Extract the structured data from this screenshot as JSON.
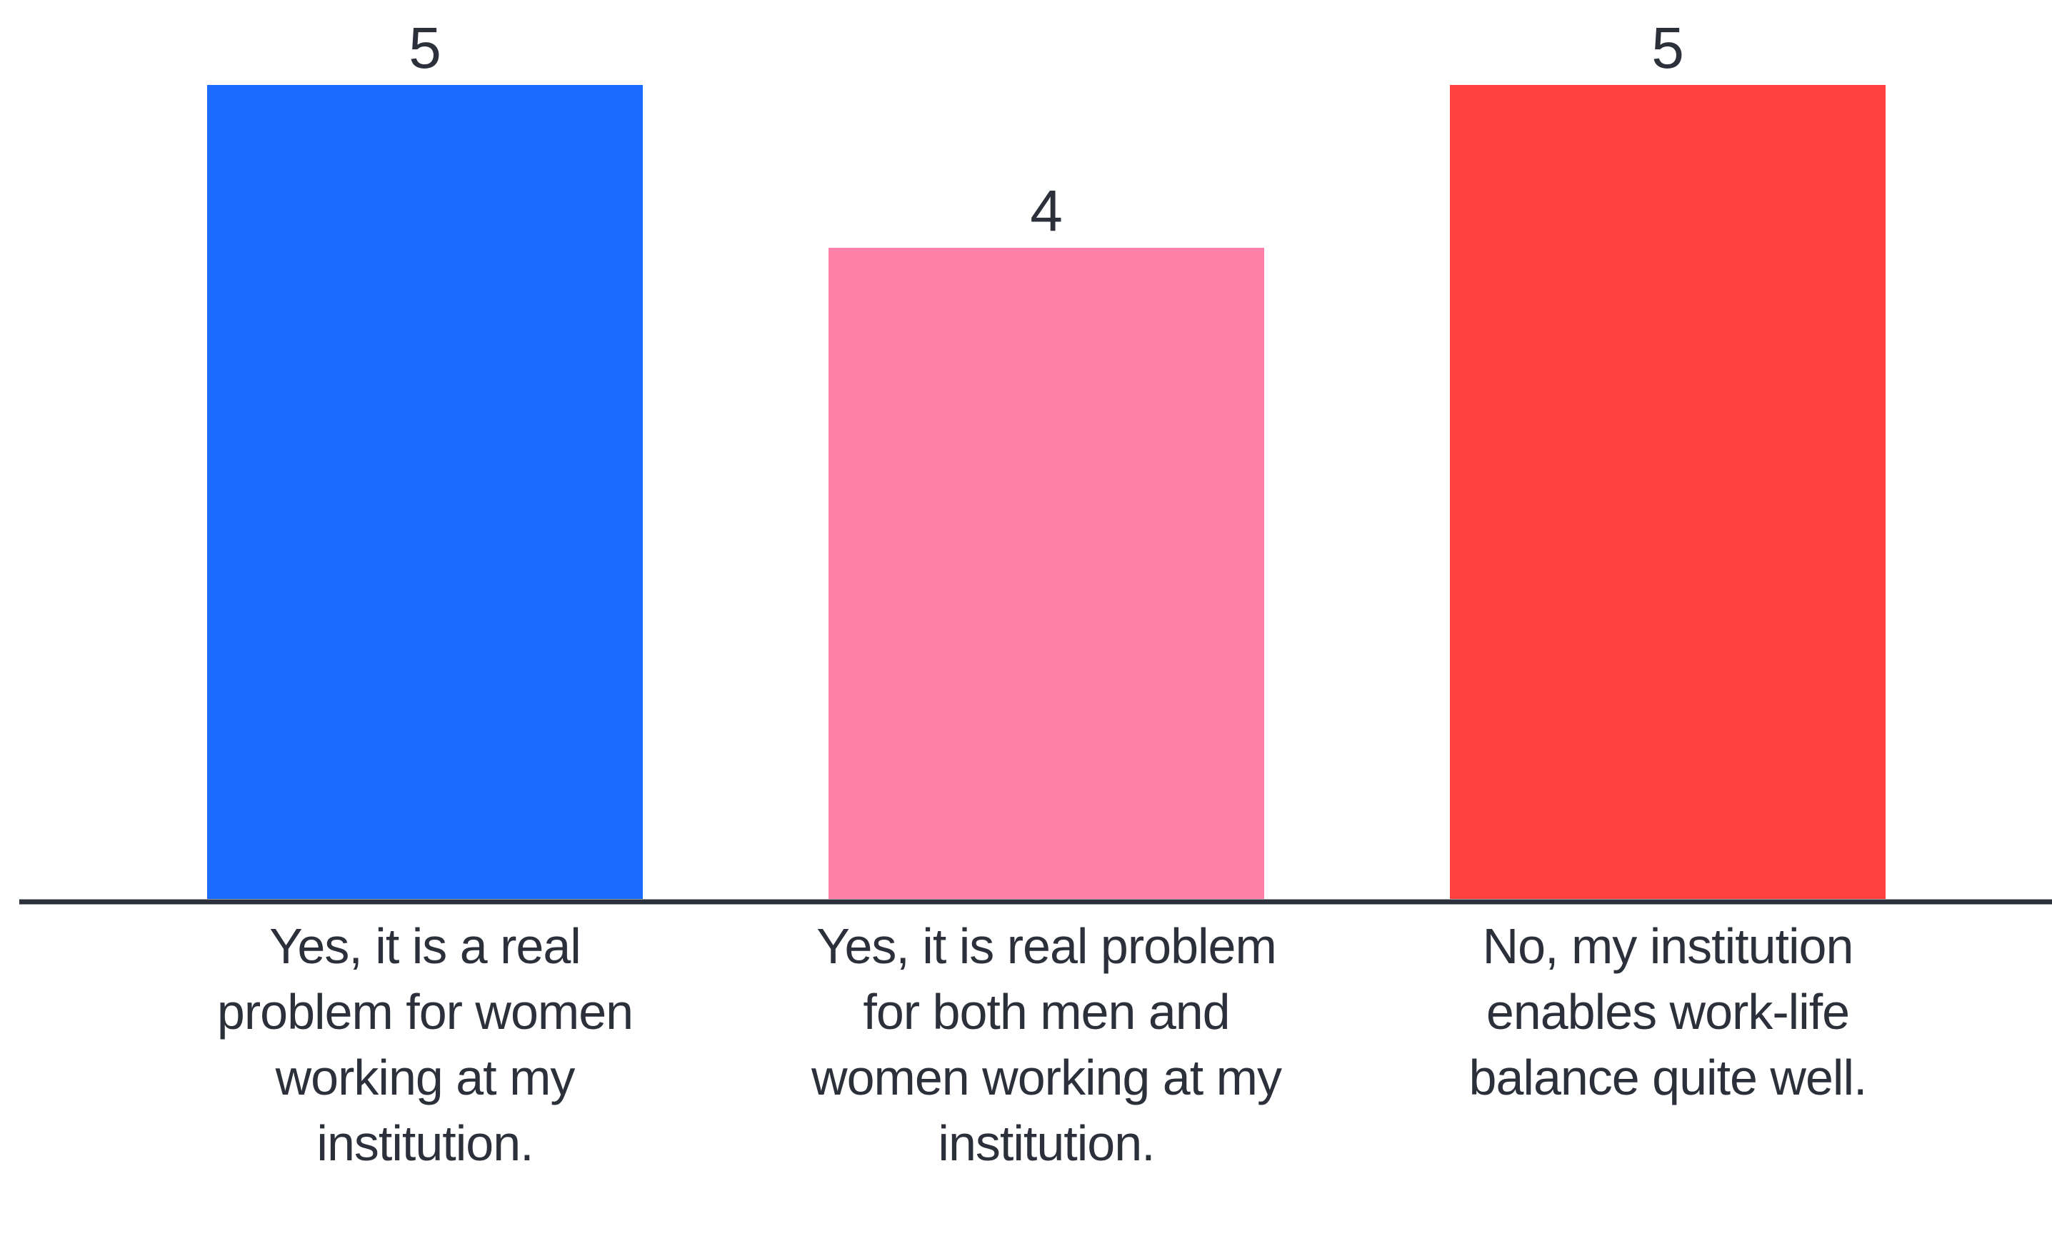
{
  "chart_data": {
    "type": "bar",
    "categories": [
      "Yes, it is a real problem for women working at my institution.",
      "Yes, it is real problem for both men and women working at my institution.",
      "No, my institution enables work-life balance quite well."
    ],
    "values": [
      5,
      4,
      5
    ],
    "colors": [
      "#1c6bff",
      "#ff80a8",
      "#ff403d"
    ],
    "ylim": [
      0,
      5
    ]
  }
}
